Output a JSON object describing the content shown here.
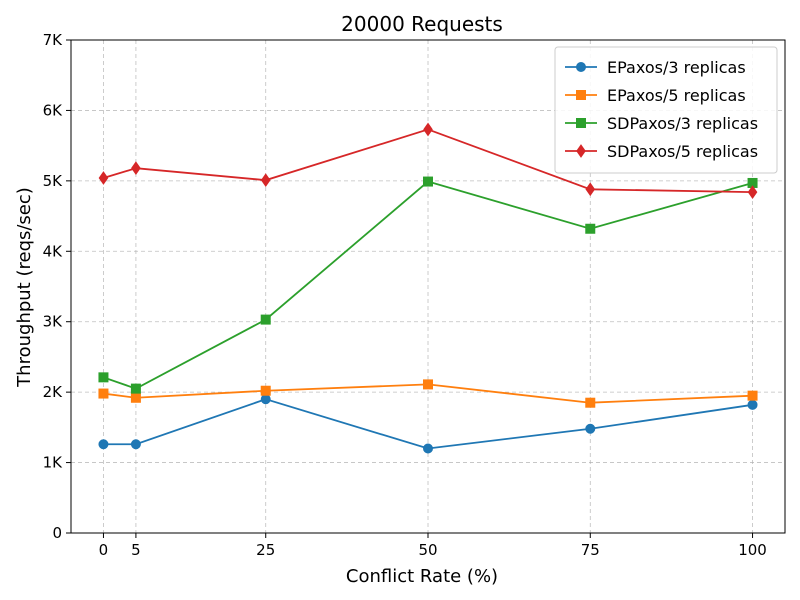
{
  "chart_data": {
    "type": "line",
    "title": "20000 Requests",
    "xlabel": "Conflict Rate (%)",
    "ylabel": "Throughput (reqs/sec)",
    "x": [
      0,
      5,
      25,
      50,
      75,
      100
    ],
    "x_tick_labels": [
      "0",
      "5",
      "25",
      "50",
      "75",
      "100"
    ],
    "xlim": [
      -5,
      105
    ],
    "ylim": [
      0,
      7000
    ],
    "y_ticks": [
      0,
      1000,
      2000,
      3000,
      4000,
      5000,
      6000,
      7000
    ],
    "y_tick_labels": [
      "0",
      "1K",
      "2K",
      "3K",
      "4K",
      "5K",
      "6K",
      "7K"
    ],
    "grid": true,
    "legend_position": "top-right",
    "series": [
      {
        "name": "EPaxos/3 replicas",
        "color": "#1f77b4",
        "marker": "circle",
        "values": [
          1260,
          1260,
          1900,
          1200,
          1480,
          1820
        ]
      },
      {
        "name": "EPaxos/5 replicas",
        "color": "#ff7f0e",
        "marker": "square",
        "values": [
          1980,
          1920,
          2020,
          2110,
          1850,
          1950
        ]
      },
      {
        "name": "SDPaxos/3 replicas",
        "color": "#2ca02c",
        "marker": "square",
        "values": [
          2210,
          2050,
          3030,
          4990,
          4320,
          4970
        ]
      },
      {
        "name": "SDPaxos/5 replicas",
        "color": "#d62728",
        "marker": "diamond",
        "values": [
          5040,
          5180,
          5010,
          5730,
          4880,
          4840
        ]
      }
    ]
  }
}
